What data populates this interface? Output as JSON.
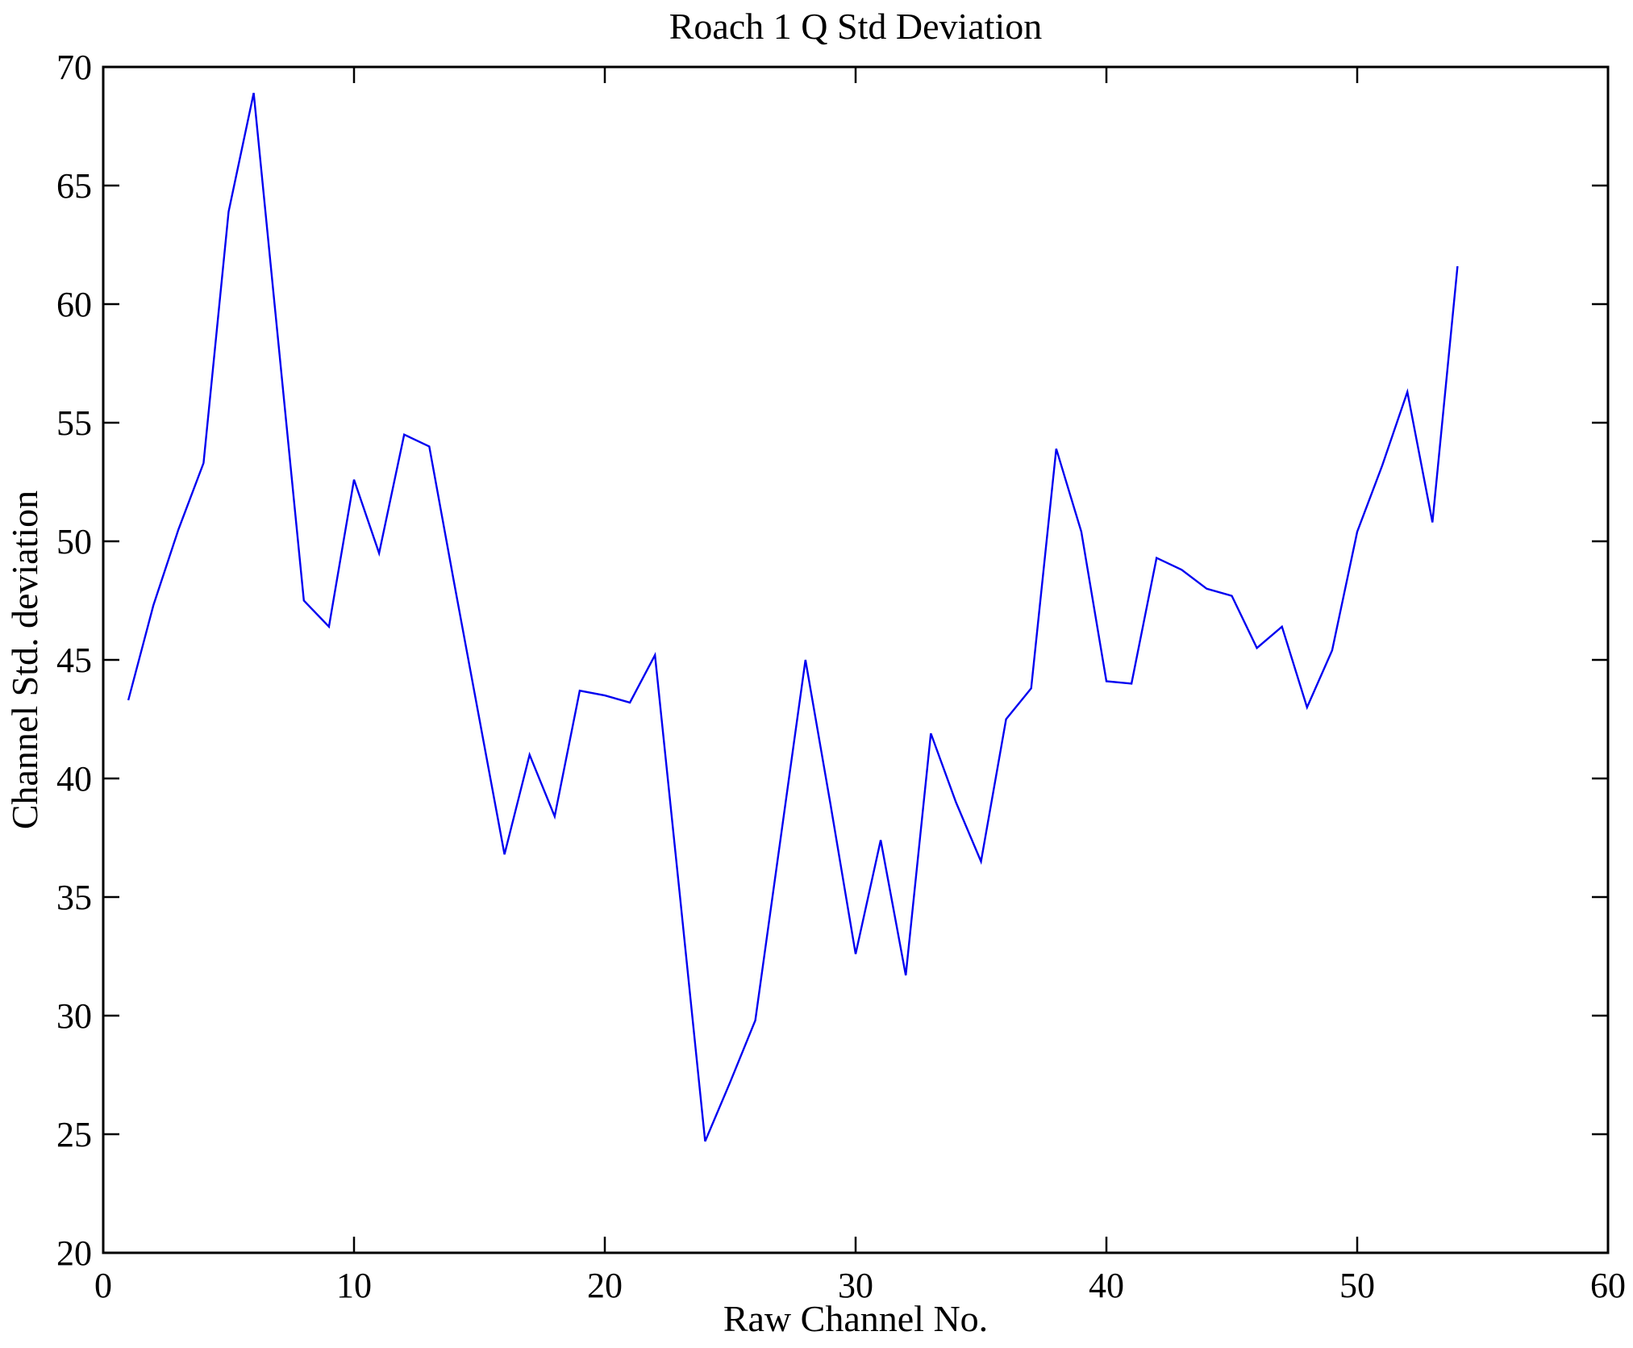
{
  "chart_data": {
    "type": "line",
    "title": "Roach 1 Q Std Deviation",
    "xlabel": "Raw Channel No.",
    "ylabel": "Channel Std. deviation",
    "xlim": [
      0,
      60
    ],
    "ylim": [
      20,
      70
    ],
    "xticks": [
      0,
      10,
      20,
      30,
      40,
      50,
      60
    ],
    "yticks": [
      20,
      25,
      30,
      35,
      40,
      45,
      50,
      55,
      60,
      65,
      70
    ],
    "grid": false,
    "legend": "none",
    "line_color": "#0000f0",
    "axis_color": "#000000",
    "background_color": "#ffffff",
    "series": [
      {
        "name": "Channel Std. deviation",
        "x": [
          1,
          2,
          3,
          4,
          5,
          6,
          7,
          8,
          9,
          10,
          11,
          12,
          13,
          14,
          15,
          16,
          17,
          18,
          19,
          20,
          21,
          22,
          23,
          24,
          25,
          26,
          27,
          28,
          29,
          30,
          31,
          32,
          33,
          34,
          35,
          36,
          37,
          38,
          39,
          40,
          41,
          42,
          43,
          44,
          45,
          46,
          47,
          48,
          49,
          50,
          51,
          52,
          53,
          54
        ],
        "y": [
          43.3,
          47.3,
          50.5,
          53.3,
          63.9,
          68.9,
          58.2,
          47.5,
          46.4,
          52.6,
          49.5,
          54.5,
          54.0,
          48.2,
          42.5,
          36.8,
          41.0,
          38.4,
          43.7,
          43.5,
          43.2,
          45.2,
          35.0,
          24.7,
          27.2,
          29.8,
          37.4,
          45.0,
          38.9,
          32.6,
          37.4,
          31.7,
          41.9,
          39.0,
          36.5,
          42.5,
          43.8,
          53.9,
          50.4,
          44.1,
          44.0,
          49.3,
          48.8,
          48.0,
          47.7,
          45.5,
          46.4,
          43.0,
          45.4,
          50.4,
          53.2,
          56.3,
          50.8,
          61.6
        ]
      }
    ]
  }
}
